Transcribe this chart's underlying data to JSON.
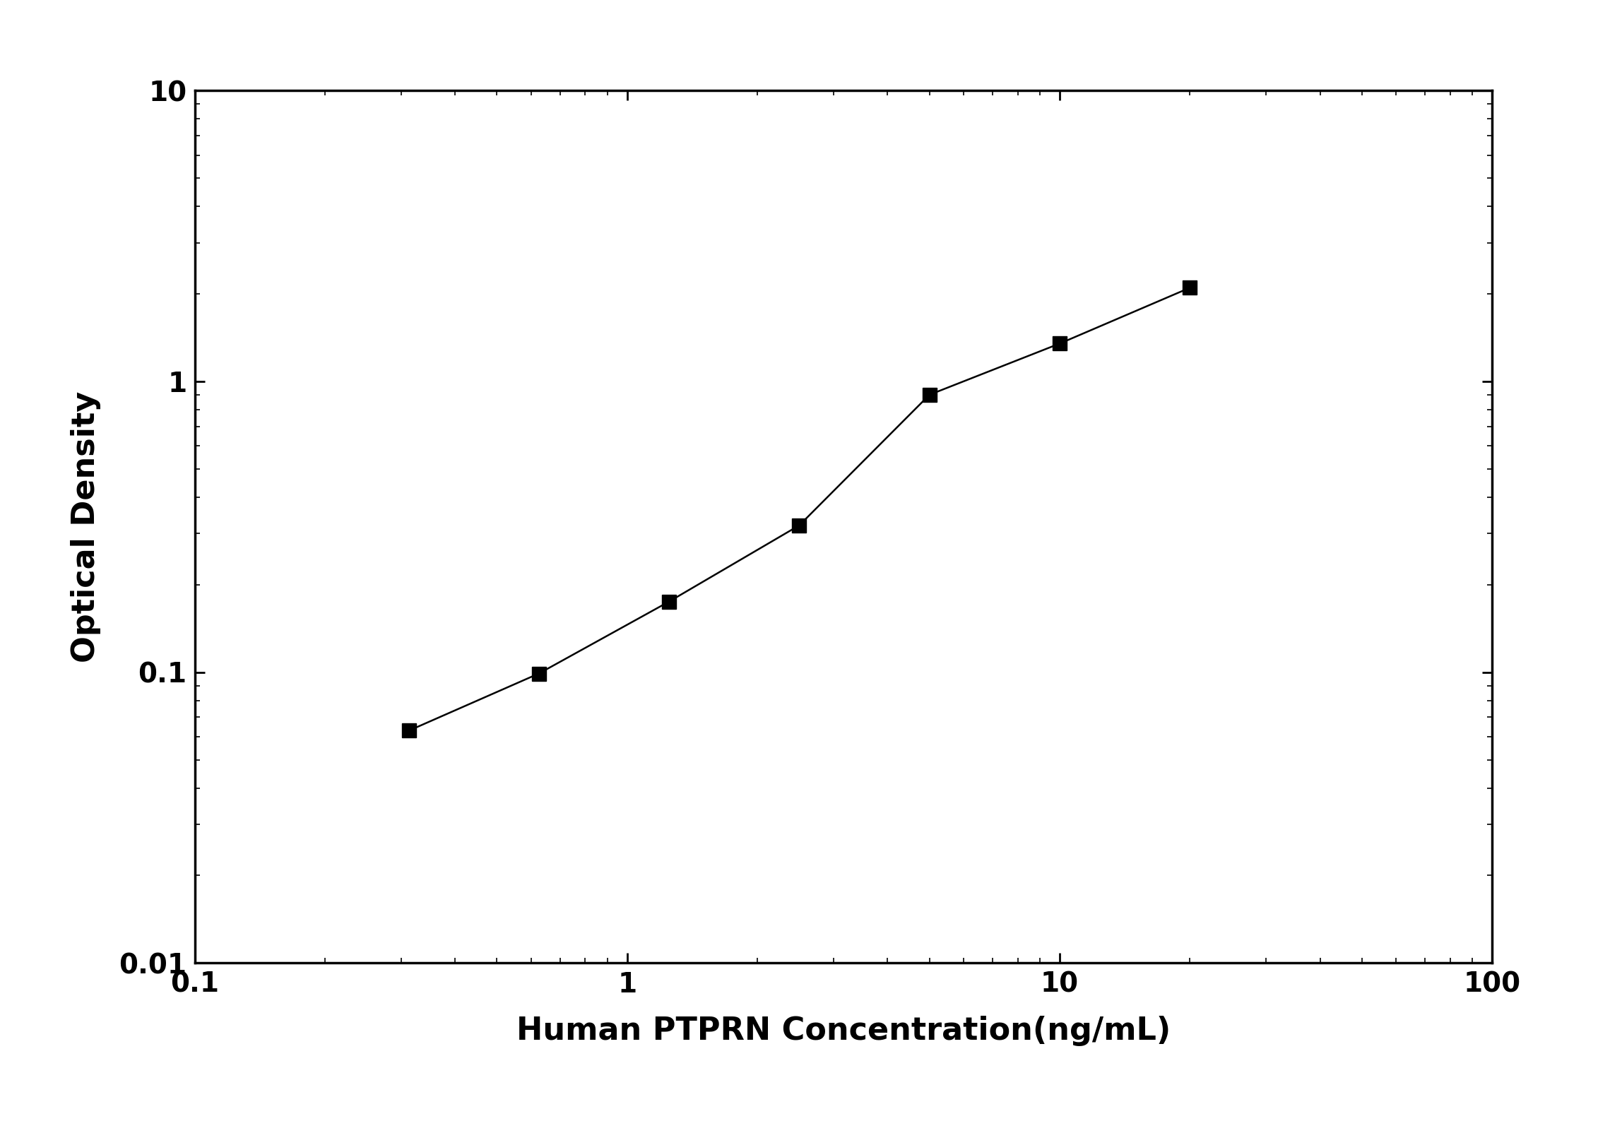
{
  "x": [
    0.313,
    0.625,
    1.25,
    2.5,
    5.0,
    10.0,
    20.0
  ],
  "y": [
    0.063,
    0.099,
    0.175,
    0.32,
    0.9,
    1.35,
    2.1
  ],
  "xlabel": "Human PTPRN Concentration(ng/mL)",
  "ylabel": "Optical Density",
  "xlim": [
    0.1,
    100
  ],
  "ylim": [
    0.01,
    10
  ],
  "line_color": "#000000",
  "marker": "s",
  "marker_color": "#000000",
  "marker_size": 14,
  "linewidth": 1.8,
  "xlabel_fontsize": 32,
  "ylabel_fontsize": 32,
  "tick_fontsize": 28,
  "background_color": "#ffffff",
  "spine_linewidth": 2.5
}
